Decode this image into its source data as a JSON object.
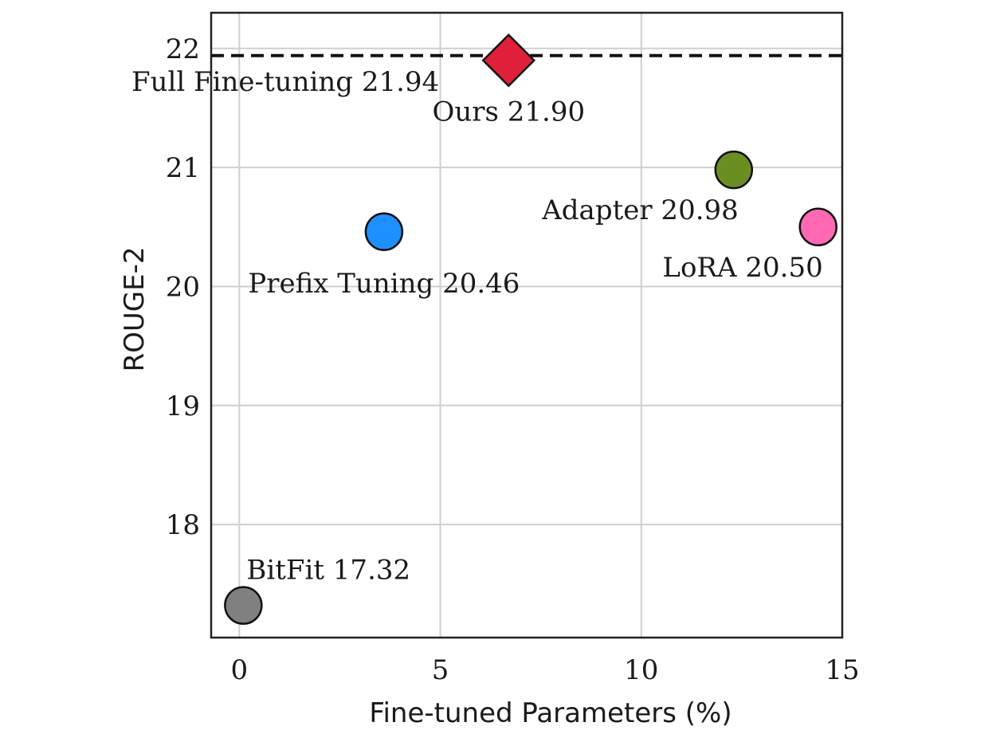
{
  "chart_data": {
    "type": "scatter",
    "xlabel": "Fine-tuned Parameters (%)",
    "ylabel": "ROUGE-2",
    "xlim": [
      -0.7,
      15
    ],
    "ylim": [
      17.05,
      22.3
    ],
    "x_ticks": [
      0,
      5,
      10,
      15
    ],
    "y_ticks": [
      18,
      19,
      20,
      21,
      22
    ],
    "grid": true,
    "reference_line": {
      "label": "Full Fine-tuning 21.94",
      "y": 21.94,
      "style": "dashed"
    },
    "points": [
      {
        "label": "Ours 21.90",
        "x": 6.7,
        "y": 21.9,
        "marker": "diamond",
        "color": "#e0203a",
        "label_anchor": "below"
      },
      {
        "label": "Adapter 20.98",
        "x": 12.3,
        "y": 20.98,
        "marker": "circle",
        "color": "#6b8e23",
        "label_anchor": "below-left"
      },
      {
        "label": "LoRA 20.50",
        "x": 14.4,
        "y": 20.5,
        "marker": "circle",
        "color": "#ff69b4",
        "label_anchor": "below-left"
      },
      {
        "label": "Prefix Tuning 20.46",
        "x": 3.6,
        "y": 20.46,
        "marker": "circle",
        "color": "#1e90ff",
        "label_anchor": "below"
      },
      {
        "label": "BitFit 17.32",
        "x": 0.1,
        "y": 17.32,
        "marker": "circle",
        "color": "#808080",
        "label_anchor": "above-right"
      }
    ]
  }
}
